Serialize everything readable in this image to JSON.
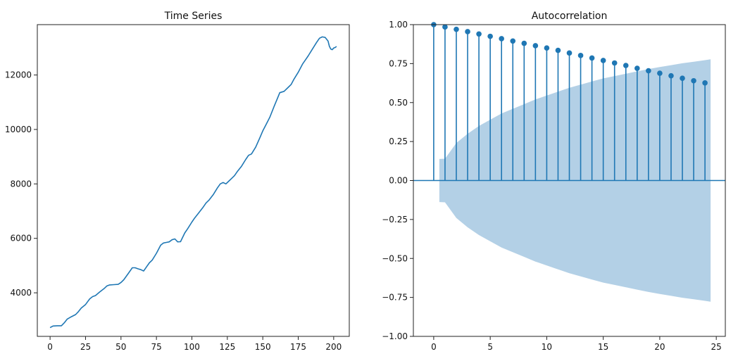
{
  "chart_data": [
    {
      "type": "line",
      "title": "Time Series",
      "xlabel": "",
      "ylabel": "",
      "xlim": [
        -9,
        211
      ],
      "ylim": [
        2400,
        13850
      ],
      "xticks": [
        0,
        25,
        50,
        75,
        100,
        125,
        150,
        175,
        200
      ],
      "yticks": [
        4000,
        6000,
        8000,
        10000,
        12000
      ],
      "grid": false,
      "line_color": "#1f77b4",
      "series": [
        {
          "x": [
            0,
            2,
            5,
            8,
            10,
            12,
            15,
            18,
            20,
            22,
            25,
            28,
            30,
            32,
            35,
            38,
            40,
            42,
            45,
            48,
            50,
            52,
            55,
            58,
            60,
            62,
            64,
            66,
            68,
            70,
            72,
            75,
            78,
            80,
            82,
            84,
            86,
            88,
            90,
            92,
            95,
            97,
            100,
            102,
            105,
            108,
            110,
            112,
            115,
            118,
            120,
            122,
            124,
            126,
            128,
            130,
            132,
            135,
            138,
            140,
            142,
            145,
            148,
            150,
            152,
            155,
            158,
            160,
            162,
            165,
            168,
            170,
            172,
            175,
            178,
            180,
            182,
            185,
            188,
            190,
            192,
            194,
            196,
            197,
            198,
            199,
            200,
            201,
            202
          ],
          "y": [
            2720,
            2780,
            2790,
            2790,
            2900,
            3030,
            3120,
            3200,
            3310,
            3440,
            3570,
            3780,
            3860,
            3900,
            4030,
            4150,
            4250,
            4290,
            4300,
            4310,
            4380,
            4480,
            4700,
            4920,
            4920,
            4880,
            4850,
            4800,
            4950,
            5100,
            5200,
            5450,
            5750,
            5830,
            5850,
            5870,
            5950,
            5980,
            5870,
            5880,
            6200,
            6350,
            6600,
            6750,
            6950,
            7150,
            7300,
            7400,
            7600,
            7850,
            8000,
            8050,
            8000,
            8100,
            8200,
            8300,
            8450,
            8650,
            8900,
            9050,
            9100,
            9350,
            9700,
            9950,
            10150,
            10450,
            10850,
            11100,
            11350,
            11400,
            11550,
            11650,
            11850,
            12100,
            12400,
            12550,
            12700,
            12950,
            13200,
            13350,
            13400,
            13380,
            13250,
            13050,
            12950,
            12930,
            12990,
            13010,
            13050
          ]
        }
      ]
    },
    {
      "type": "stem",
      "title": "Autocorrelation",
      "xlabel": "",
      "ylabel": "",
      "xlim": [
        -1.8,
        25.8
      ],
      "ylim": [
        -1.0,
        1.0
      ],
      "xticks": [
        0,
        5,
        10,
        15,
        20,
        25
      ],
      "yticks": [
        -1.0,
        -0.75,
        -0.5,
        -0.25,
        0.0,
        0.25,
        0.5,
        0.75,
        1.0
      ],
      "grid": false,
      "stem_color": "#1f77b4",
      "band_color": "#b3d0e6",
      "lags": [
        0,
        1,
        2,
        3,
        4,
        5,
        6,
        7,
        8,
        9,
        10,
        11,
        12,
        13,
        14,
        15,
        16,
        17,
        18,
        19,
        20,
        21,
        22,
        23,
        24
      ],
      "values": [
        1.0,
        0.985,
        0.97,
        0.955,
        0.94,
        0.925,
        0.91,
        0.895,
        0.88,
        0.865,
        0.85,
        0.835,
        0.818,
        0.802,
        0.786,
        0.77,
        0.754,
        0.738,
        0.72,
        0.704,
        0.688,
        0.672,
        0.656,
        0.64,
        0.626
      ],
      "confidence_band": {
        "lags": [
          0.5,
          1,
          2,
          3,
          4,
          5,
          6,
          7,
          8,
          9,
          10,
          11,
          12,
          13,
          14,
          15,
          16,
          17,
          18,
          19,
          20,
          21,
          22,
          23,
          24,
          24.5
        ],
        "upper": [
          0.138,
          0.14,
          0.24,
          0.3,
          0.35,
          0.39,
          0.43,
          0.46,
          0.49,
          0.52,
          0.545,
          0.57,
          0.595,
          0.615,
          0.635,
          0.655,
          0.67,
          0.685,
          0.7,
          0.715,
          0.728,
          0.74,
          0.752,
          0.762,
          0.772,
          0.778
        ]
      }
    }
  ]
}
